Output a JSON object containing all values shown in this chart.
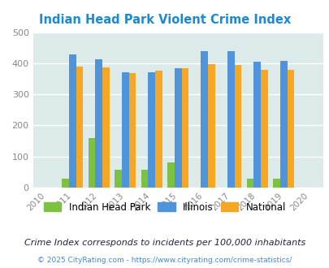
{
  "title": "Indian Head Park Violent Crime Index",
  "years": [
    2010,
    2011,
    2012,
    2013,
    2014,
    2015,
    2016,
    2017,
    2018,
    2019,
    2020
  ],
  "plot_years": [
    2011,
    2012,
    2013,
    2014,
    2015,
    2016,
    2017,
    2018,
    2019
  ],
  "indian_head_park": [
    30,
    160,
    57,
    57,
    80,
    0,
    0,
    30,
    30
  ],
  "illinois": [
    428,
    414,
    372,
    370,
    383,
    438,
    438,
    405,
    407
  ],
  "national": [
    388,
    387,
    368,
    375,
    383,
    397,
    394,
    379,
    379
  ],
  "color_ihp": "#7dc142",
  "color_illinois": "#4d94db",
  "color_national": "#f5a623",
  "color_bg": "#ddeaea",
  "xlabel_color": "#888888",
  "title_color": "#1a8ad4",
  "xlim": [
    2009.5,
    2020.5
  ],
  "ylim": [
    0,
    500
  ],
  "yticks": [
    0,
    100,
    200,
    300,
    400,
    500
  ],
  "bar_width": 0.27,
  "legend_labels": [
    "Indian Head Park",
    "Illinois",
    "National"
  ],
  "footnote1": "Crime Index corresponds to incidents per 100,000 inhabitants",
  "footnote2": "© 2025 CityRating.com - https://www.cityrating.com/crime-statistics/",
  "footnote1_color": "#222244",
  "footnote2_color": "#4488cc"
}
